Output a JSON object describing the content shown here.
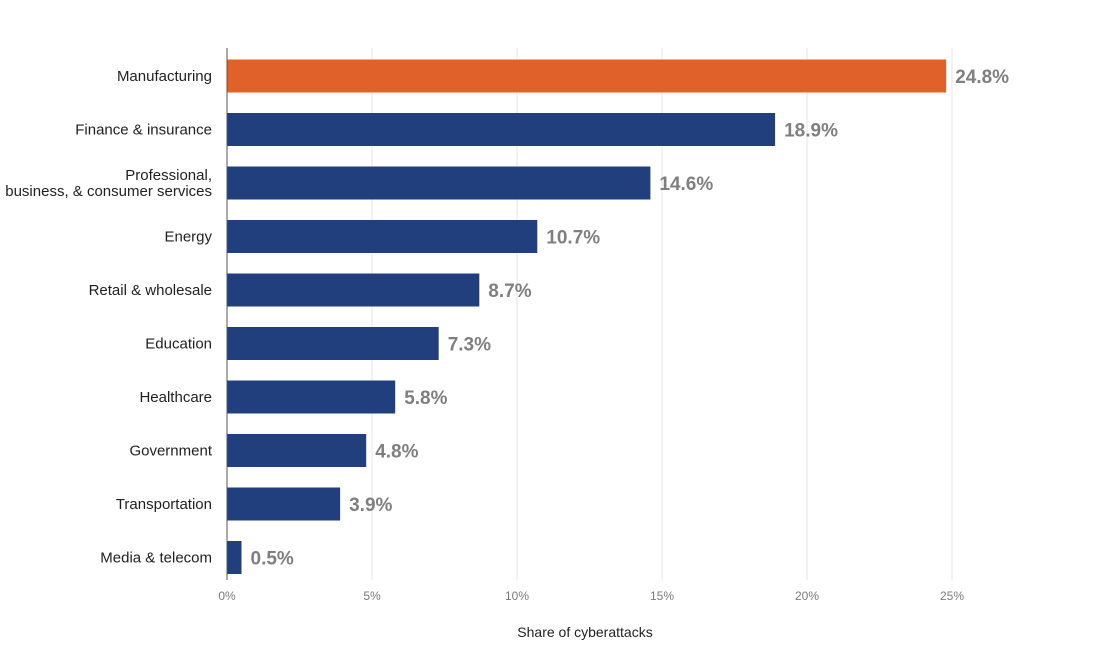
{
  "chart_data": {
    "type": "bar",
    "orientation": "horizontal",
    "title": "",
    "xlabel": "Share of cyberattacks",
    "ylabel": "",
    "categories": [
      "Manufacturing",
      "Finance & insurance",
      "Professional, business, & consumer services",
      "Energy",
      "Retail & wholesale",
      "Education",
      "Healthcare",
      "Government",
      "Transportation",
      "Media & telecom"
    ],
    "values": [
      24.8,
      18.9,
      14.6,
      10.7,
      8.7,
      7.3,
      5.8,
      4.8,
      3.9,
      0.5
    ],
    "value_labels": [
      "24.8%",
      "18.9%",
      "14.6%",
      "10.7%",
      "8.7%",
      "7.3%",
      "5.8%",
      "4.8%",
      "3.9%",
      "0.5%"
    ],
    "xlim": [
      0,
      25
    ],
    "x_ticks": [
      0,
      5,
      10,
      15,
      20,
      25
    ],
    "x_tick_labels": [
      "0%",
      "5%",
      "10%",
      "15%",
      "20%",
      "25%"
    ],
    "grid": "vertical",
    "legend": "none",
    "highlight_index": 0,
    "colors": {
      "bar": "#213f7c",
      "highlight": "#e0622a",
      "value_label": "#7f7f7f",
      "gridline": "#e4e4e4",
      "axis": "#555555"
    }
  }
}
